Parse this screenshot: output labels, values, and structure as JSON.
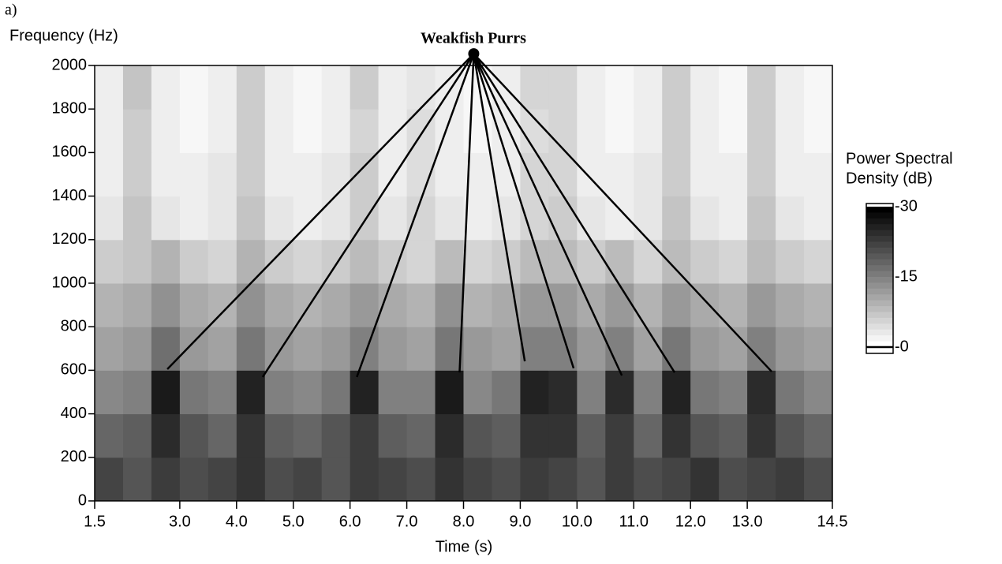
{
  "chart_data": {
    "type": "spectrogram",
    "panel_label": "a)",
    "title": "Weakfish Purrs",
    "y_label": "Frequency (Hz)",
    "x_label": "Time (s)",
    "xlim": [
      1.5,
      14.5
    ],
    "xticks": [
      1.5,
      {
        "value": 3,
        "label": "3.0"
      },
      {
        "value": 4,
        "label": "4.0"
      },
      {
        "value": 5,
        "label": "5.0"
      },
      {
        "value": 6,
        "label": "6.0"
      },
      {
        "value": 7,
        "label": "7.0"
      },
      {
        "value": 8,
        "label": "8.0"
      },
      {
        "value": 9,
        "label": "9.0"
      },
      {
        "value": 10,
        "label": "10.0"
      },
      {
        "value": 11,
        "label": "11.0"
      },
      {
        "value": 12,
        "label": "12.0"
      },
      {
        "value": 13,
        "label": "13.0"
      },
      14.5
    ],
    "ylim": [
      0,
      2000
    ],
    "yticks": [
      0,
      200,
      400,
      600,
      800,
      1000,
      1200,
      1400,
      1600,
      1800,
      2000
    ],
    "values": [
      [
        -22,
        -20,
        -23,
        -21,
        -22,
        -24,
        -21,
        -22,
        -20,
        -23,
        -22,
        -21,
        -24,
        -22,
        -21,
        -23,
        -22,
        -20,
        -23,
        -21,
        -22,
        -24,
        -21,
        -22,
        -23,
        -21
      ],
      [
        -18,
        -19,
        -25,
        -20,
        -18,
        -24,
        -19,
        -18,
        -20,
        -23,
        -19,
        -18,
        -25,
        -20,
        -19,
        -24,
        -24,
        -19,
        -23,
        -18,
        -24,
        -20,
        -19,
        -24,
        -20,
        -18
      ],
      [
        -14,
        -15,
        -27,
        -16,
        -15,
        -26,
        -15,
        -14,
        -16,
        -26,
        -15,
        -15,
        -27,
        -14,
        -16,
        -26,
        -25,
        -15,
        -25,
        -15,
        -26,
        -16,
        -15,
        -25,
        -16,
        -14
      ],
      [
        -11,
        -12,
        -17,
        -12,
        -11,
        -16,
        -12,
        -11,
        -12,
        -15,
        -12,
        -11,
        -16,
        -12,
        -11,
        -15,
        -15,
        -12,
        -15,
        -11,
        -16,
        -12,
        -11,
        -15,
        -12,
        -11
      ],
      [
        -9,
        -10,
        -13,
        -10,
        -9,
        -13,
        -10,
        -9,
        -10,
        -12,
        -10,
        -9,
        -13,
        -9,
        -10,
        -12,
        -12,
        -10,
        -12,
        -9,
        -12,
        -10,
        -9,
        -12,
        -10,
        -9
      ],
      [
        -6,
        -7,
        -9,
        -6,
        -5,
        -9,
        -6,
        -5,
        -6,
        -8,
        -6,
        -5,
        -8,
        -5,
        -6,
        -8,
        -8,
        -6,
        -8,
        -5,
        -8,
        -6,
        -5,
        -8,
        -6,
        -5
      ],
      [
        -3,
        -7,
        -3,
        -2,
        -3,
        -7,
        -3,
        -2,
        -3,
        -6,
        -3,
        -5,
        -3,
        -2,
        -3,
        -5,
        -6,
        -3,
        -2,
        -3,
        -7,
        -3,
        -2,
        -7,
        -3,
        -2
      ],
      [
        -2,
        -6,
        -2,
        -2,
        -3,
        -6,
        -2,
        -2,
        -3,
        -6,
        -2,
        -4,
        -2,
        -2,
        -2,
        -5,
        -5,
        -2,
        -2,
        -3,
        -6,
        -2,
        -2,
        -6,
        -2,
        -2
      ],
      [
        -2,
        -6,
        -2,
        -1,
        -2,
        -6,
        -2,
        -1,
        -2,
        -5,
        -2,
        -4,
        -2,
        -1,
        -2,
        -4,
        -5,
        -2,
        -1,
        -2,
        -6,
        -2,
        -1,
        -6,
        -2,
        -1
      ],
      [
        -2,
        -7,
        -2,
        -1,
        -2,
        -6,
        -2,
        -1,
        -2,
        -6,
        -2,
        -3,
        -2,
        -1,
        -2,
        -5,
        -5,
        -2,
        -1,
        -2,
        -6,
        -2,
        -1,
        -6,
        -2,
        -1
      ]
    ],
    "colorbar": {
      "title": [
        "Power Spectral",
        "Density (dB)"
      ],
      "lim": [
        -30,
        0
      ],
      "ticks": [
        -30,
        -15,
        {
          "value": 0,
          "label": "-0"
        }
      ]
    },
    "annotation": {
      "apex": [
        8.18,
        2054
      ],
      "points": [
        [
          2.78,
          605
        ],
        [
          4.46,
          569
        ],
        [
          6.12,
          569
        ],
        [
          7.93,
          590
        ],
        [
          9.08,
          641
        ],
        [
          9.94,
          609
        ],
        [
          10.79,
          576
        ],
        [
          11.72,
          590
        ],
        [
          13.43,
          594
        ]
      ]
    }
  }
}
